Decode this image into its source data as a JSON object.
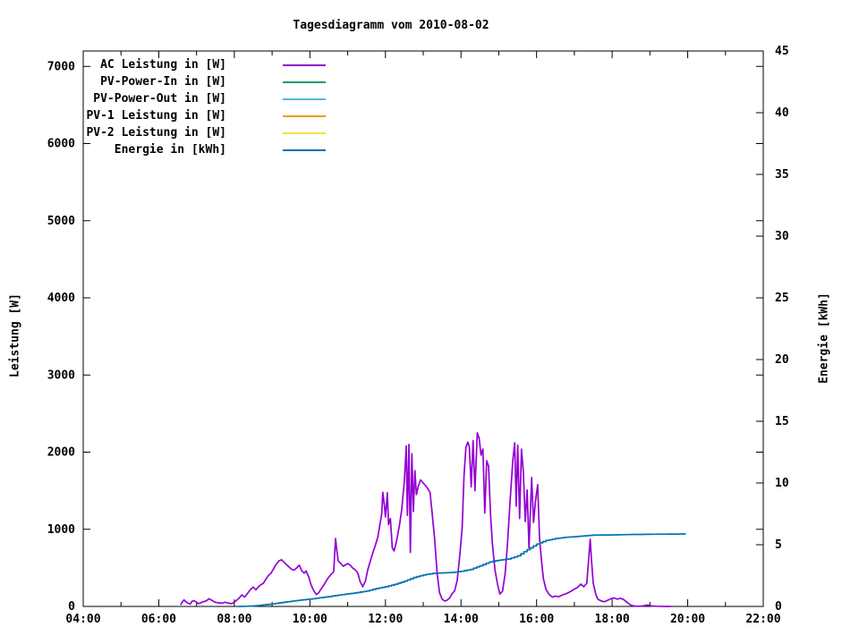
{
  "title": "Tagesdiagramm vom 2010-08-02",
  "axes": {
    "x": {
      "labels": [
        "04:00",
        "06:00",
        "08:00",
        "10:00",
        "12:00",
        "14:00",
        "16:00",
        "18:00",
        "20:00",
        "22:00"
      ],
      "first_label_hour": 4,
      "label_step_hours": 2,
      "minor_tick_step_hours": 1
    },
    "y_left": {
      "label": "Leistung [W]",
      "tick_labels": [
        "0",
        "1000",
        "2000",
        "3000",
        "4000",
        "5000",
        "6000",
        "7000"
      ],
      "tick_step": 1000,
      "min": 0,
      "max": 7200
    },
    "y_right": {
      "label": "Energie [kWh]",
      "tick_labels": [
        "0",
        "5",
        "10",
        "15",
        "20",
        "25",
        "30",
        "35",
        "40",
        "45"
      ],
      "tick_step": 5,
      "min": 0,
      "max": 45
    }
  },
  "legend": {
    "items": [
      {
        "label": "AC Leistung in [W]",
        "color": "#9400d3"
      },
      {
        "label": "PV-Power-In in [W]",
        "color": "#009e73"
      },
      {
        "label": "PV-Power-Out in [W]",
        "color": "#56b4e9"
      },
      {
        "label": "PV-1 Leistung in [W]",
        "color": "#e69f00"
      },
      {
        "label": "PV-2 Leistung in [W]",
        "color": "#f0e442"
      },
      {
        "label": "Energie in [kWh]",
        "color": "#0072b2"
      }
    ]
  },
  "chart_data": {
    "type": "line",
    "title": "Tagesdiagramm vom 2010-08-02",
    "x_unit": "time of day (hours)",
    "x_range_hours": [
      4,
      22
    ],
    "ylabel_left": "Leistung [W]",
    "ylim_left": [
      0,
      7200
    ],
    "ylabel_right": "Energie [kWh]",
    "ylim_right": [
      0,
      45
    ],
    "grid": false,
    "legend_position": "inside top-left",
    "series": [
      {
        "name": "AC Leistung in [W]",
        "color": "#9400d3",
        "axis": "left",
        "style": "line",
        "points": [
          [
            6.58,
            20
          ],
          [
            6.62,
            55
          ],
          [
            6.67,
            85
          ],
          [
            6.72,
            60
          ],
          [
            6.78,
            40
          ],
          [
            6.83,
            30
          ],
          [
            6.88,
            65
          ],
          [
            6.93,
            75
          ],
          [
            7.0,
            55
          ],
          [
            7.05,
            35
          ],
          [
            7.1,
            45
          ],
          [
            7.17,
            60
          ],
          [
            7.25,
            70
          ],
          [
            7.33,
            100
          ],
          [
            7.4,
            80
          ],
          [
            7.47,
            60
          ],
          [
            7.53,
            50
          ],
          [
            7.6,
            45
          ],
          [
            7.67,
            40
          ],
          [
            7.75,
            55
          ],
          [
            7.83,
            45
          ],
          [
            7.9,
            35
          ],
          [
            7.97,
            45
          ],
          [
            8.05,
            75
          ],
          [
            8.13,
            110
          ],
          [
            8.2,
            150
          ],
          [
            8.27,
            120
          ],
          [
            8.35,
            170
          ],
          [
            8.43,
            220
          ],
          [
            8.5,
            250
          ],
          [
            8.57,
            215
          ],
          [
            8.63,
            250
          ],
          [
            8.7,
            280
          ],
          [
            8.77,
            300
          ],
          [
            8.83,
            350
          ],
          [
            8.9,
            400
          ],
          [
            8.97,
            430
          ],
          [
            9.03,
            480
          ],
          [
            9.1,
            540
          ],
          [
            9.18,
            590
          ],
          [
            9.25,
            605
          ],
          [
            9.32,
            570
          ],
          [
            9.38,
            540
          ],
          [
            9.45,
            510
          ],
          [
            9.52,
            480
          ],
          [
            9.58,
            470
          ],
          [
            9.65,
            500
          ],
          [
            9.72,
            535
          ],
          [
            9.78,
            465
          ],
          [
            9.85,
            430
          ],
          [
            9.9,
            460
          ],
          [
            9.97,
            380
          ],
          [
            10.03,
            280
          ],
          [
            10.1,
            205
          ],
          [
            10.17,
            155
          ],
          [
            10.23,
            175
          ],
          [
            10.3,
            230
          ],
          [
            10.37,
            280
          ],
          [
            10.43,
            330
          ],
          [
            10.5,
            380
          ],
          [
            10.57,
            420
          ],
          [
            10.63,
            450
          ],
          [
            10.68,
            880
          ],
          [
            10.72,
            700
          ],
          [
            10.75,
            590
          ],
          [
            10.82,
            555
          ],
          [
            10.88,
            520
          ],
          [
            10.95,
            540
          ],
          [
            11.0,
            555
          ],
          [
            11.07,
            535
          ],
          [
            11.13,
            500
          ],
          [
            11.2,
            475
          ],
          [
            11.27,
            430
          ],
          [
            11.33,
            320
          ],
          [
            11.4,
            255
          ],
          [
            11.47,
            330
          ],
          [
            11.53,
            470
          ],
          [
            11.6,
            590
          ],
          [
            11.67,
            700
          ],
          [
            11.73,
            790
          ],
          [
            11.8,
            900
          ],
          [
            11.85,
            1050
          ],
          [
            11.9,
            1200
          ],
          [
            11.93,
            1480
          ],
          [
            11.97,
            1320
          ],
          [
            12.0,
            1160
          ],
          [
            12.05,
            1475
          ],
          [
            12.08,
            1060
          ],
          [
            12.13,
            1140
          ],
          [
            12.18,
            760
          ],
          [
            12.23,
            720
          ],
          [
            12.3,
            860
          ],
          [
            12.37,
            1050
          ],
          [
            12.43,
            1250
          ],
          [
            12.5,
            1620
          ],
          [
            12.55,
            2080
          ],
          [
            12.58,
            1180
          ],
          [
            12.62,
            2100
          ],
          [
            12.66,
            700
          ],
          [
            12.7,
            1980
          ],
          [
            12.74,
            1230
          ],
          [
            12.78,
            1760
          ],
          [
            12.82,
            1450
          ],
          [
            12.87,
            1560
          ],
          [
            12.93,
            1640
          ],
          [
            13.0,
            1600
          ],
          [
            13.07,
            1560
          ],
          [
            13.13,
            1520
          ],
          [
            13.18,
            1480
          ],
          [
            13.23,
            1240
          ],
          [
            13.3,
            880
          ],
          [
            13.37,
            420
          ],
          [
            13.43,
            180
          ],
          [
            13.5,
            95
          ],
          [
            13.57,
            70
          ],
          [
            13.63,
            80
          ],
          [
            13.7,
            110
          ],
          [
            13.77,
            170
          ],
          [
            13.83,
            200
          ],
          [
            13.9,
            340
          ],
          [
            13.97,
            680
          ],
          [
            14.03,
            1020
          ],
          [
            14.08,
            1700
          ],
          [
            14.13,
            2060
          ],
          [
            14.18,
            2130
          ],
          [
            14.22,
            2070
          ],
          [
            14.27,
            1550
          ],
          [
            14.32,
            2150
          ],
          [
            14.37,
            1500
          ],
          [
            14.43,
            2250
          ],
          [
            14.48,
            2180
          ],
          [
            14.53,
            1960
          ],
          [
            14.58,
            2040
          ],
          [
            14.63,
            1210
          ],
          [
            14.68,
            1890
          ],
          [
            14.73,
            1820
          ],
          [
            14.78,
            1190
          ],
          [
            14.83,
            810
          ],
          [
            14.9,
            470
          ],
          [
            14.97,
            280
          ],
          [
            15.03,
            160
          ],
          [
            15.1,
            200
          ],
          [
            15.17,
            430
          ],
          [
            15.23,
            820
          ],
          [
            15.3,
            1370
          ],
          [
            15.37,
            1890
          ],
          [
            15.42,
            2120
          ],
          [
            15.46,
            1300
          ],
          [
            15.5,
            2090
          ],
          [
            15.55,
            1140
          ],
          [
            15.6,
            2040
          ],
          [
            15.65,
            1740
          ],
          [
            15.7,
            1100
          ],
          [
            15.75,
            1510
          ],
          [
            15.8,
            760
          ],
          [
            15.87,
            1670
          ],
          [
            15.92,
            1090
          ],
          [
            15.97,
            1360
          ],
          [
            16.03,
            1580
          ],
          [
            16.08,
            880
          ],
          [
            16.13,
            590
          ],
          [
            16.18,
            360
          ],
          [
            16.25,
            220
          ],
          [
            16.33,
            155
          ],
          [
            16.42,
            120
          ],
          [
            16.5,
            135
          ],
          [
            16.58,
            125
          ],
          [
            16.67,
            145
          ],
          [
            16.75,
            160
          ],
          [
            16.83,
            175
          ],
          [
            16.92,
            200
          ],
          [
            17.0,
            225
          ],
          [
            17.08,
            245
          ],
          [
            17.17,
            290
          ],
          [
            17.25,
            255
          ],
          [
            17.33,
            300
          ],
          [
            17.42,
            870
          ],
          [
            17.45,
            620
          ],
          [
            17.5,
            300
          ],
          [
            17.57,
            150
          ],
          [
            17.63,
            90
          ],
          [
            17.72,
            70
          ],
          [
            17.8,
            60
          ],
          [
            17.88,
            80
          ],
          [
            17.97,
            100
          ],
          [
            18.05,
            110
          ],
          [
            18.13,
            95
          ],
          [
            18.22,
            105
          ],
          [
            18.3,
            90
          ],
          [
            18.4,
            50
          ],
          [
            18.5,
            15
          ],
          [
            18.6,
            5
          ],
          [
            18.75,
            2
          ],
          [
            18.95,
            18
          ],
          [
            19.05,
            6
          ],
          [
            19.2,
            2
          ],
          [
            19.4,
            0
          ],
          [
            19.55,
            0
          ]
        ]
      },
      {
        "name": "PV-Power-In in [W]",
        "color": "#009e73",
        "axis": "left",
        "style": "line",
        "points": []
      },
      {
        "name": "PV-Power-Out in [W]",
        "color": "#56b4e9",
        "axis": "left",
        "style": "line",
        "points": []
      },
      {
        "name": "PV-1 Leistung in [W]",
        "color": "#e69f00",
        "axis": "left",
        "style": "line",
        "points": []
      },
      {
        "name": "PV-2 Leistung in [W]",
        "color": "#f0e442",
        "axis": "left",
        "style": "line",
        "points": []
      },
      {
        "name": "Energie in [kWh]",
        "color": "#0072b2",
        "axis": "right",
        "style": "steps",
        "points": [
          [
            8.1,
            0
          ],
          [
            8.5,
            0.04
          ],
          [
            8.75,
            0.12
          ],
          [
            9.0,
            0.2
          ],
          [
            9.25,
            0.32
          ],
          [
            9.5,
            0.42
          ],
          [
            9.75,
            0.52
          ],
          [
            10.0,
            0.6
          ],
          [
            10.25,
            0.7
          ],
          [
            10.5,
            0.8
          ],
          [
            10.75,
            0.92
          ],
          [
            11.0,
            1.02
          ],
          [
            11.25,
            1.12
          ],
          [
            11.5,
            1.25
          ],
          [
            11.75,
            1.45
          ],
          [
            12.0,
            1.6
          ],
          [
            12.25,
            1.8
          ],
          [
            12.5,
            2.05
          ],
          [
            12.75,
            2.35
          ],
          [
            13.0,
            2.55
          ],
          [
            13.25,
            2.68
          ],
          [
            13.5,
            2.72
          ],
          [
            13.75,
            2.75
          ],
          [
            14.0,
            2.85
          ],
          [
            14.25,
            3.0
          ],
          [
            14.5,
            3.3
          ],
          [
            14.75,
            3.6
          ],
          [
            15.0,
            3.75
          ],
          [
            15.25,
            3.85
          ],
          [
            15.5,
            4.1
          ],
          [
            15.75,
            4.6
          ],
          [
            16.0,
            5.05
          ],
          [
            16.25,
            5.35
          ],
          [
            16.5,
            5.5
          ],
          [
            16.75,
            5.6
          ],
          [
            17.0,
            5.65
          ],
          [
            17.25,
            5.72
          ],
          [
            17.5,
            5.78
          ],
          [
            18.0,
            5.8
          ],
          [
            18.5,
            5.83
          ],
          [
            19.0,
            5.85
          ],
          [
            19.5,
            5.86
          ],
          [
            19.95,
            5.87
          ]
        ]
      }
    ]
  }
}
